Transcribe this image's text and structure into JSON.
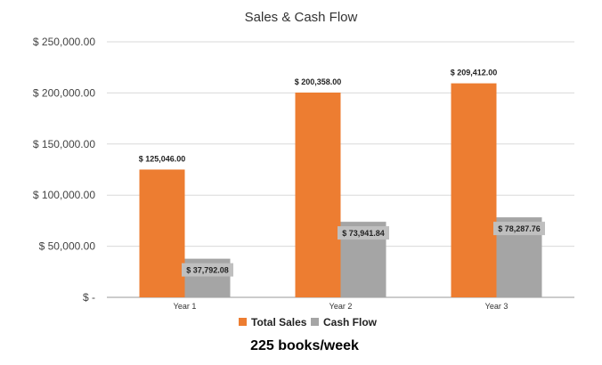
{
  "chart_data": {
    "type": "bar",
    "title": "Sales & Cash Flow",
    "categories": [
      "Year 1",
      "Year 2",
      "Year 3"
    ],
    "series": [
      {
        "name": "Total Sales",
        "color": "#ed7d31",
        "values": [
          125046.0,
          200358.0,
          209412.0
        ],
        "labels": [
          "$ 125,046.00",
          "$ 200,358.00",
          "$ 209,412.00"
        ]
      },
      {
        "name": "Cash Flow",
        "color": "#a5a5a5",
        "values": [
          37792.08,
          73941.84,
          78287.76
        ],
        "labels": [
          "$ 37,792.08",
          "$ 73,941.84",
          "$ 78,287.76"
        ]
      }
    ],
    "ylim": [
      0,
      250000
    ],
    "yticks": [
      {
        "value": 0,
        "label": "$ -"
      },
      {
        "value": 50000,
        "label": "$ 50,000.00"
      },
      {
        "value": 100000,
        "label": "$ 100,000.00"
      },
      {
        "value": 150000,
        "label": "$ 150,000.00"
      },
      {
        "value": 200000,
        "label": "$ 200,000.00"
      },
      {
        "value": 250000,
        "label": "$ 250,000.00"
      }
    ],
    "grid": true,
    "legend": "bottom"
  },
  "caption": "225 books/week"
}
